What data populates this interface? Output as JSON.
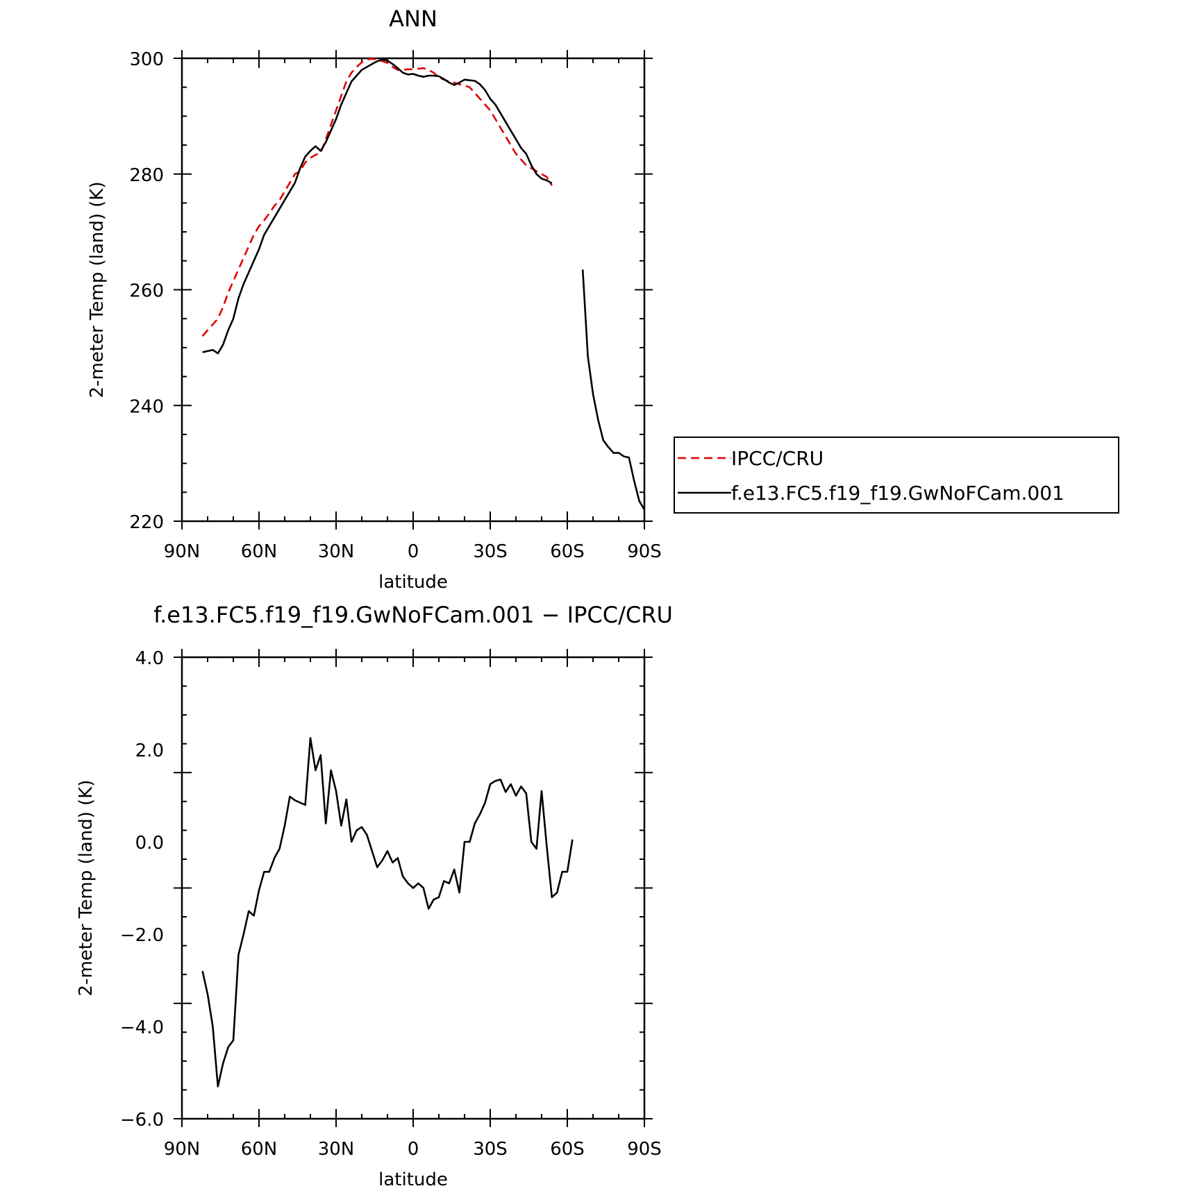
{
  "chart_data": [
    {
      "type": "line",
      "title": "ANN",
      "xlabel": "latitude",
      "ylabel": "2-meter Temp (land) (K)",
      "xlim": [
        90,
        -90
      ],
      "ylim": [
        220,
        300
      ],
      "xticks": [
        90,
        60,
        30,
        0,
        -30,
        -60,
        -90
      ],
      "xtick_labels": [
        "90N",
        "60N",
        "30N",
        "0",
        "30S",
        "60S",
        "90S"
      ],
      "yticks": [
        220,
        240,
        260,
        280,
        300
      ],
      "ytick_labels": [
        "220",
        "240",
        "260",
        "280",
        "300"
      ],
      "legend": "right",
      "series": [
        {
          "name": "IPCC/CRU",
          "color": "#e00000",
          "dash": "dashed",
          "segments": [
            [
              [
                82,
                252
              ],
              [
                80,
                253
              ],
              [
                78,
                254
              ],
              [
                76,
                255
              ],
              [
                74,
                257
              ],
              [
                72,
                259.5
              ],
              [
                70,
                261.5
              ],
              [
                68,
                263.5
              ],
              [
                66,
                265.5
              ],
              [
                64,
                267.5
              ],
              [
                62,
                269.5
              ],
              [
                60,
                271
              ],
              [
                58,
                272
              ],
              [
                56,
                273.2
              ],
              [
                54,
                274.5
              ],
              [
                52,
                275.5
              ],
              [
                50,
                277
              ],
              [
                48,
                278.5
              ],
              [
                46,
                280
              ],
              [
                44,
                280.5
              ],
              [
                42,
                282
              ],
              [
                40,
                282.8
              ],
              [
                38,
                283.3
              ],
              [
                36,
                283.6
              ],
              [
                34,
                286
              ],
              [
                32,
                288.5
              ],
              [
                30,
                291
              ],
              [
                28,
                293.5
              ],
              [
                26,
                296
              ],
              [
                24,
                297.5
              ],
              [
                22,
                298.5
              ],
              [
                20,
                299.3
              ],
              [
                18,
                299.8
              ],
              [
                16,
                299.9
              ],
              [
                14,
                299.8
              ],
              [
                12,
                299.5
              ],
              [
                10,
                299.2
              ],
              [
                8,
                298.5
              ],
              [
                6,
                298
              ],
              [
                4,
                298
              ],
              [
                2,
                298.1
              ],
              [
                0,
                298.1
              ],
              [
                -2,
                298.2
              ],
              [
                -4,
                298.3
              ],
              [
                -6,
                298
              ],
              [
                -8,
                297.5
              ],
              [
                -10,
                296.7
              ],
              [
                -12,
                296.3
              ],
              [
                -14,
                296
              ],
              [
                -16,
                295.8
              ],
              [
                -18,
                295.5
              ],
              [
                -20,
                295.3
              ],
              [
                -22,
                295
              ],
              [
                -24,
                294
              ],
              [
                -26,
                293
              ],
              [
                -28,
                292
              ],
              [
                -30,
                291
              ],
              [
                -32,
                289.5
              ],
              [
                -34,
                288
              ],
              [
                -36,
                286.5
              ],
              [
                -38,
                285
              ],
              [
                -40,
                283.5
              ],
              [
                -42,
                282.5
              ],
              [
                -44,
                281.5
              ],
              [
                -46,
                281
              ],
              [
                -48,
                280.5
              ],
              [
                -50,
                280
              ],
              [
                -52,
                279.5
              ],
              [
                -54,
                278
              ]
            ]
          ]
        },
        {
          "name": "f.e13.FC5.f19_f19.GwNoFCam.001",
          "color": "#000000",
          "dash": "solid",
          "segments": [
            [
              [
                82,
                249.2
              ],
              [
                80,
                249.4
              ],
              [
                78,
                249.6
              ],
              [
                76,
                249
              ],
              [
                74,
                250.5
              ],
              [
                72,
                253
              ],
              [
                70,
                255
              ],
              [
                68,
                258.5
              ],
              [
                66,
                261
              ],
              [
                64,
                263
              ],
              [
                62,
                265
              ],
              [
                60,
                267
              ],
              [
                58,
                269.5
              ],
              [
                56,
                271
              ],
              [
                54,
                272.5
              ],
              [
                52,
                274
              ],
              [
                50,
                275.5
              ],
              [
                48,
                277
              ],
              [
                46,
                278.5
              ],
              [
                44,
                281
              ],
              [
                42,
                283
              ],
              [
                40,
                284
              ],
              [
                38,
                284.8
              ],
              [
                36,
                284
              ],
              [
                34,
                285.5
              ],
              [
                32,
                287.5
              ],
              [
                30,
                289.5
              ],
              [
                28,
                292
              ],
              [
                26,
                294
              ],
              [
                24,
                296
              ],
              [
                22,
                297
              ],
              [
                20,
                298
              ],
              [
                18,
                298.5
              ],
              [
                16,
                299
              ],
              [
                14,
                299.5
              ],
              [
                12,
                299.8
              ],
              [
                10,
                299.6
              ],
              [
                8,
                299
              ],
              [
                6,
                298.3
              ],
              [
                4,
                297.5
              ],
              [
                2,
                297.2
              ],
              [
                0,
                297.3
              ],
              [
                -2,
                297
              ],
              [
                -4,
                296.8
              ],
              [
                -6,
                297
              ],
              [
                -8,
                297
              ],
              [
                -10,
                296.9
              ],
              [
                -12,
                296.4
              ],
              [
                -14,
                295.8
              ],
              [
                -16,
                295.4
              ],
              [
                -18,
                295.8
              ],
              [
                -20,
                296.3
              ],
              [
                -22,
                296.2
              ],
              [
                -24,
                296.1
              ],
              [
                -26,
                295.5
              ],
              [
                -28,
                294.5
              ],
              [
                -30,
                293
              ],
              [
                -32,
                292
              ],
              [
                -34,
                290.5
              ],
              [
                -36,
                289
              ],
              [
                -38,
                287.5
              ],
              [
                -40,
                286
              ],
              [
                -42,
                284.5
              ],
              [
                -44,
                283.5
              ],
              [
                -46,
                281.5
              ],
              [
                -48,
                280
              ],
              [
                -50,
                279.2
              ],
              [
                -52,
                278.9
              ],
              [
                -54,
                278.4
              ]
            ],
            [
              [
                -66,
                263.5
              ],
              [
                -68,
                248.5
              ],
              [
                -70,
                242
              ],
              [
                -72,
                237.5
              ],
              [
                -74,
                234
              ],
              [
                -76,
                232.8
              ],
              [
                -78,
                231.8
              ],
              [
                -80,
                231.8
              ],
              [
                -82,
                231.2
              ],
              [
                -84,
                231
              ],
              [
                -86,
                227
              ],
              [
                -88,
                223.5
              ],
              [
                -90,
                222
              ]
            ]
          ]
        }
      ]
    },
    {
      "type": "line",
      "title": "f.e13.FC5.f19_f19.GwNoFCam.001 − IPCC/CRU",
      "xlabel": "latitude",
      "ylabel": "2-meter Temp (land) (K)",
      "xlim": [
        90,
        -90
      ],
      "ylim": [
        -6,
        4
      ],
      "xticks": [
        90,
        60,
        30,
        0,
        -30,
        -60,
        -90
      ],
      "xtick_labels": [
        "90N",
        "60N",
        "30N",
        "0",
        "30S",
        "60S",
        "90S"
      ],
      "yticks": [
        -6,
        -4,
        -2,
        0,
        2,
        4
      ],
      "ytick_labels": [
        "−6.0",
        "−4.0",
        "−2.0",
        "0.0",
        "2.0",
        "4.0"
      ],
      "series": [
        {
          "color": "#000000",
          "dash": "solid",
          "segments": [
            [
              [
                82,
                -2.8
              ],
              [
                80,
                -3.3
              ],
              [
                78,
                -4.0
              ],
              [
                76,
                -5.3
              ],
              [
                74,
                -4.8
              ],
              [
                72,
                -4.45
              ],
              [
                70,
                -4.3
              ],
              [
                68,
                -2.45
              ],
              [
                66,
                -2.0
              ],
              [
                64,
                -1.5
              ],
              [
                62,
                -1.6
              ],
              [
                60,
                -1.05
              ],
              [
                58,
                -0.65
              ],
              [
                56,
                -0.65
              ],
              [
                54,
                -0.35
              ],
              [
                52,
                -0.15
              ],
              [
                50,
                0.35
              ],
              [
                48,
                0.98
              ],
              [
                46,
                0.9
              ],
              [
                44,
                0.85
              ],
              [
                42,
                0.8
              ],
              [
                40,
                2.25
              ],
              [
                38,
                1.55
              ],
              [
                36,
                1.88
              ],
              [
                34,
                0.4
              ],
              [
                32,
                1.55
              ],
              [
                30,
                1.1
              ],
              [
                28,
                0.35
              ],
              [
                26,
                0.92
              ],
              [
                24,
                0.0
              ],
              [
                22,
                0.25
              ],
              [
                20,
                0.32
              ],
              [
                18,
                0.15
              ],
              [
                16,
                -0.2
              ],
              [
                14,
                -0.55
              ],
              [
                12,
                -0.4
              ],
              [
                10,
                -0.2
              ],
              [
                8,
                -0.45
              ],
              [
                6,
                -0.35
              ],
              [
                4,
                -0.75
              ],
              [
                2,
                -0.9
              ],
              [
                0,
                -1.0
              ],
              [
                -2,
                -0.9
              ],
              [
                -4,
                -1.0
              ],
              [
                -6,
                -1.45
              ],
              [
                -8,
                -1.25
              ],
              [
                -10,
                -1.2
              ],
              [
                -12,
                -0.85
              ],
              [
                -14,
                -0.9
              ],
              [
                -16,
                -0.6
              ],
              [
                -18,
                -1.1
              ],
              [
                -20,
                0.0
              ],
              [
                -22,
                0.0
              ],
              [
                -24,
                0.4
              ],
              [
                -26,
                0.6
              ],
              [
                -28,
                0.85
              ],
              [
                -30,
                1.25
              ],
              [
                -32,
                1.32
              ],
              [
                -34,
                1.35
              ],
              [
                -36,
                1.08
              ],
              [
                -38,
                1.25
              ],
              [
                -40,
                1.0
              ],
              [
                -42,
                1.2
              ],
              [
                -44,
                1.05
              ],
              [
                -46,
                0.0
              ],
              [
                -48,
                -0.15
              ],
              [
                -50,
                1.1
              ],
              [
                -52,
                -0.1
              ],
              [
                -54,
                -1.2
              ],
              [
                -56,
                -1.1
              ],
              [
                -58,
                -0.65
              ],
              [
                -60,
                -0.65
              ],
              [
                -62,
                0.05
              ]
            ]
          ]
        }
      ]
    }
  ]
}
